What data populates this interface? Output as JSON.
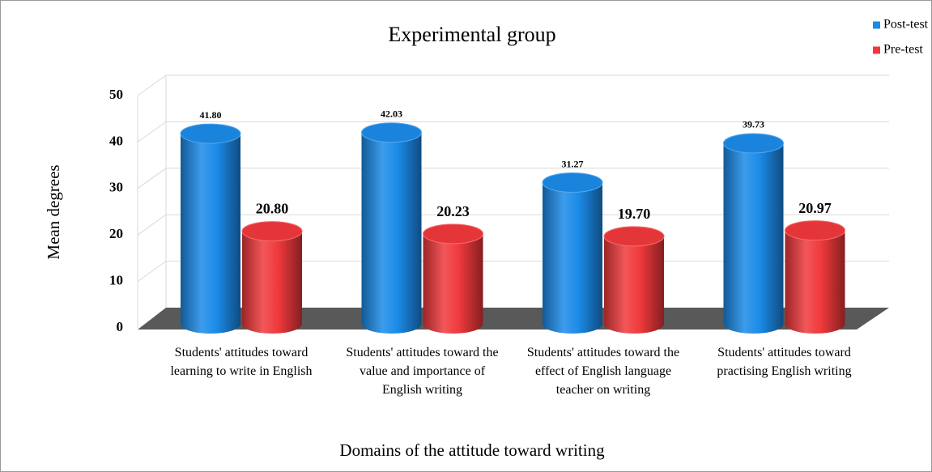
{
  "chart_data": {
    "type": "bar3d",
    "title": "Experimental group",
    "x_label": "Domains of the attitude toward writing",
    "y_label": "Mean degrees",
    "categories": [
      "Students' attitudes toward learning to write in English",
      "Students' attitudes toward the value and importance of  English writing",
      "Students' attitudes toward  the effect of English language teacher on writing",
      "Students' attitudes toward practising English writing"
    ],
    "series": [
      {
        "name": "Post-test",
        "color": "#1b8be8",
        "values": [
          41.8,
          42.03,
          31.27,
          39.73
        ],
        "value_labels": [
          "41.80",
          "42.03",
          "31.27",
          "39.73"
        ]
      },
      {
        "name": "Pre-test",
        "color": "#f0393c",
        "values": [
          20.8,
          20.23,
          19.7,
          20.97
        ],
        "value_labels": [
          "20.80",
          "20.23",
          "19.70",
          "20.97"
        ]
      }
    ],
    "ylim": [
      0,
      50
    ],
    "yticks": [
      0,
      10,
      20,
      30,
      40,
      50
    ],
    "grid": true,
    "legend": "top-right"
  }
}
